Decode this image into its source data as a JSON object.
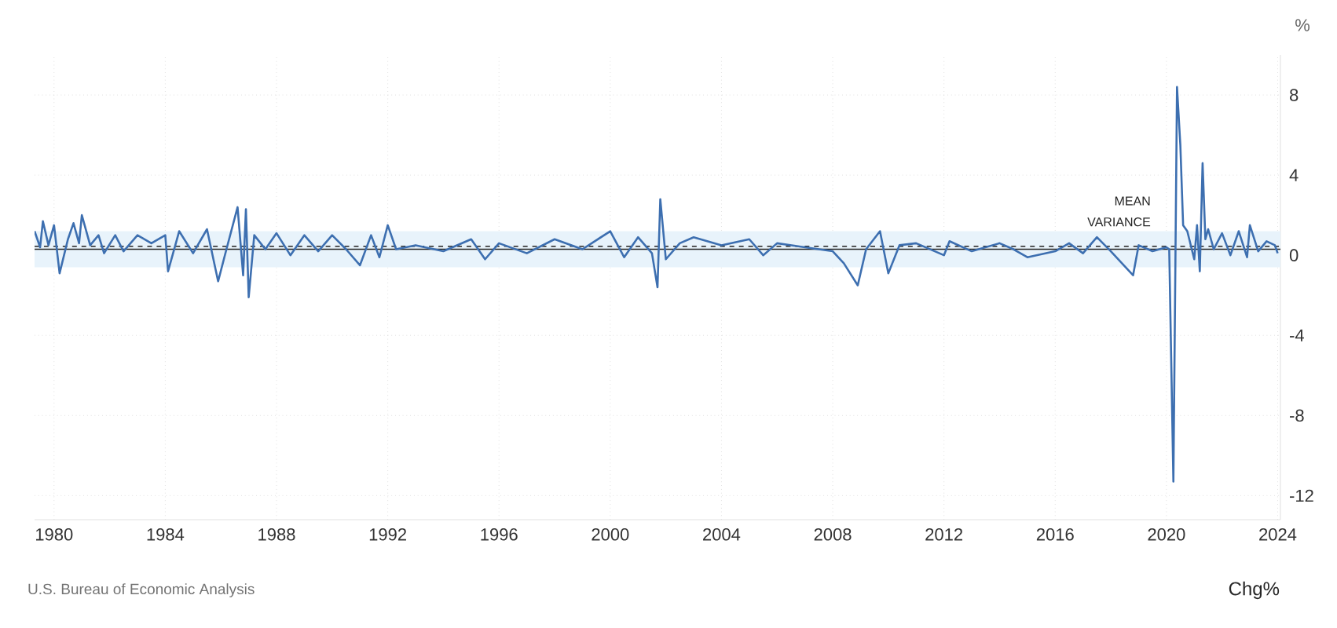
{
  "chart_data": {
    "type": "line",
    "ylabel": "%",
    "annotations": [
      "U.S. Bureau of Economic Analysis",
      "Chg%"
    ],
    "series": [
      {
        "color": "#3d6fb0",
        "x": [
          1979.3,
          1979.5,
          1979.6,
          1979.8,
          1980.0,
          1980.2,
          1980.5,
          1980.7,
          1980.9,
          1981.0,
          1981.3,
          1981.6,
          1981.8,
          1982.2,
          1982.5,
          1983.0,
          1983.5,
          1984.0,
          1984.1,
          1984.5,
          1985.0,
          1985.5,
          1985.9,
          1986.2,
          1986.6,
          1986.8,
          1986.9,
          1987.0,
          1987.2,
          1987.6,
          1988.0,
          1988.5,
          1989.0,
          1989.5,
          1990.0,
          1990.5,
          1991.0,
          1991.4,
          1991.7,
          1992.0,
          1992.3,
          1993.0,
          1994.0,
          1995.0,
          1995.5,
          1996.0,
          1997.0,
          1998.0,
          1999.0,
          2000.0,
          2000.5,
          2001.0,
          2001.5,
          2001.7,
          2001.8,
          2002.0,
          2002.5,
          2003.0,
          2004.0,
          2005.0,
          2005.5,
          2006.0,
          2007.0,
          2008.0,
          2008.4,
          2008.9,
          2009.2,
          2009.7,
          2010.0,
          2010.4,
          2011.0,
          2012.0,
          2012.2,
          2013.0,
          2014.0,
          2014.5,
          2015.0,
          2016.0,
          2016.5,
          2017.0,
          2017.5,
          2018.0,
          2018.8,
          2019.0,
          2019.5,
          2020.0,
          2020.1,
          2020.25,
          2020.38,
          2020.5,
          2020.6,
          2020.75,
          2021.0,
          2021.1,
          2021.2,
          2021.3,
          2021.4,
          2021.5,
          2021.7,
          2022.0,
          2022.3,
          2022.6,
          2022.9,
          2023.0,
          2023.3,
          2023.6,
          2023.9,
          2024.0
        ],
        "values": [
          1.2,
          0.4,
          1.7,
          0.5,
          1.5,
          -0.9,
          0.8,
          1.6,
          0.6,
          2.0,
          0.5,
          1.0,
          0.1,
          1.0,
          0.2,
          1.0,
          0.6,
          1.0,
          -0.8,
          1.2,
          0.1,
          1.3,
          -1.3,
          0.3,
          2.4,
          -1.0,
          2.3,
          -2.1,
          1.0,
          0.3,
          1.1,
          0.0,
          1.0,
          0.2,
          1.0,
          0.3,
          -0.5,
          1.0,
          -0.1,
          1.5,
          0.3,
          0.5,
          0.2,
          0.8,
          -0.2,
          0.6,
          0.1,
          0.8,
          0.3,
          1.2,
          -0.1,
          0.9,
          0.1,
          -1.6,
          2.8,
          -0.2,
          0.6,
          0.9,
          0.5,
          0.8,
          0.0,
          0.6,
          0.4,
          0.2,
          -0.4,
          -1.5,
          0.3,
          1.2,
          -0.9,
          0.5,
          0.6,
          0.0,
          0.7,
          0.2,
          0.6,
          0.3,
          -0.1,
          0.2,
          0.6,
          0.1,
          0.9,
          0.2,
          -1.0,
          0.5,
          0.2,
          0.4,
          0.3,
          -11.3,
          8.4,
          5.5,
          1.5,
          1.2,
          -0.2,
          1.5,
          -0.8,
          4.6,
          0.8,
          1.3,
          0.3,
          1.1,
          0.0,
          1.2,
          -0.1,
          1.5,
          0.2,
          0.7,
          0.5,
          0.1
        ]
      }
    ],
    "xlim": [
      1979.3,
      2024.1
    ],
    "ylim": [
      -13.2,
      10
    ],
    "xticks": [
      1980,
      1984,
      1988,
      1992,
      1996,
      2000,
      2004,
      2008,
      2012,
      2016,
      2020,
      2024
    ],
    "yticks": [
      -12,
      -8,
      -4,
      0,
      4,
      8
    ],
    "grid": true,
    "line_style": "solid",
    "marker": "none",
    "bands": [
      {
        "axis": "y",
        "from": -0.6,
        "to": 1.2,
        "label": "VARIANCE",
        "color": "#e8f3fb"
      }
    ],
    "ref_lines": [
      {
        "axis": "y",
        "value": 0.3,
        "label": "MEAN",
        "color": "#222222",
        "line_style": "solid"
      },
      {
        "axis": "y",
        "value": 0.45,
        "color": "#222222",
        "line_style": "dashed"
      }
    ]
  }
}
